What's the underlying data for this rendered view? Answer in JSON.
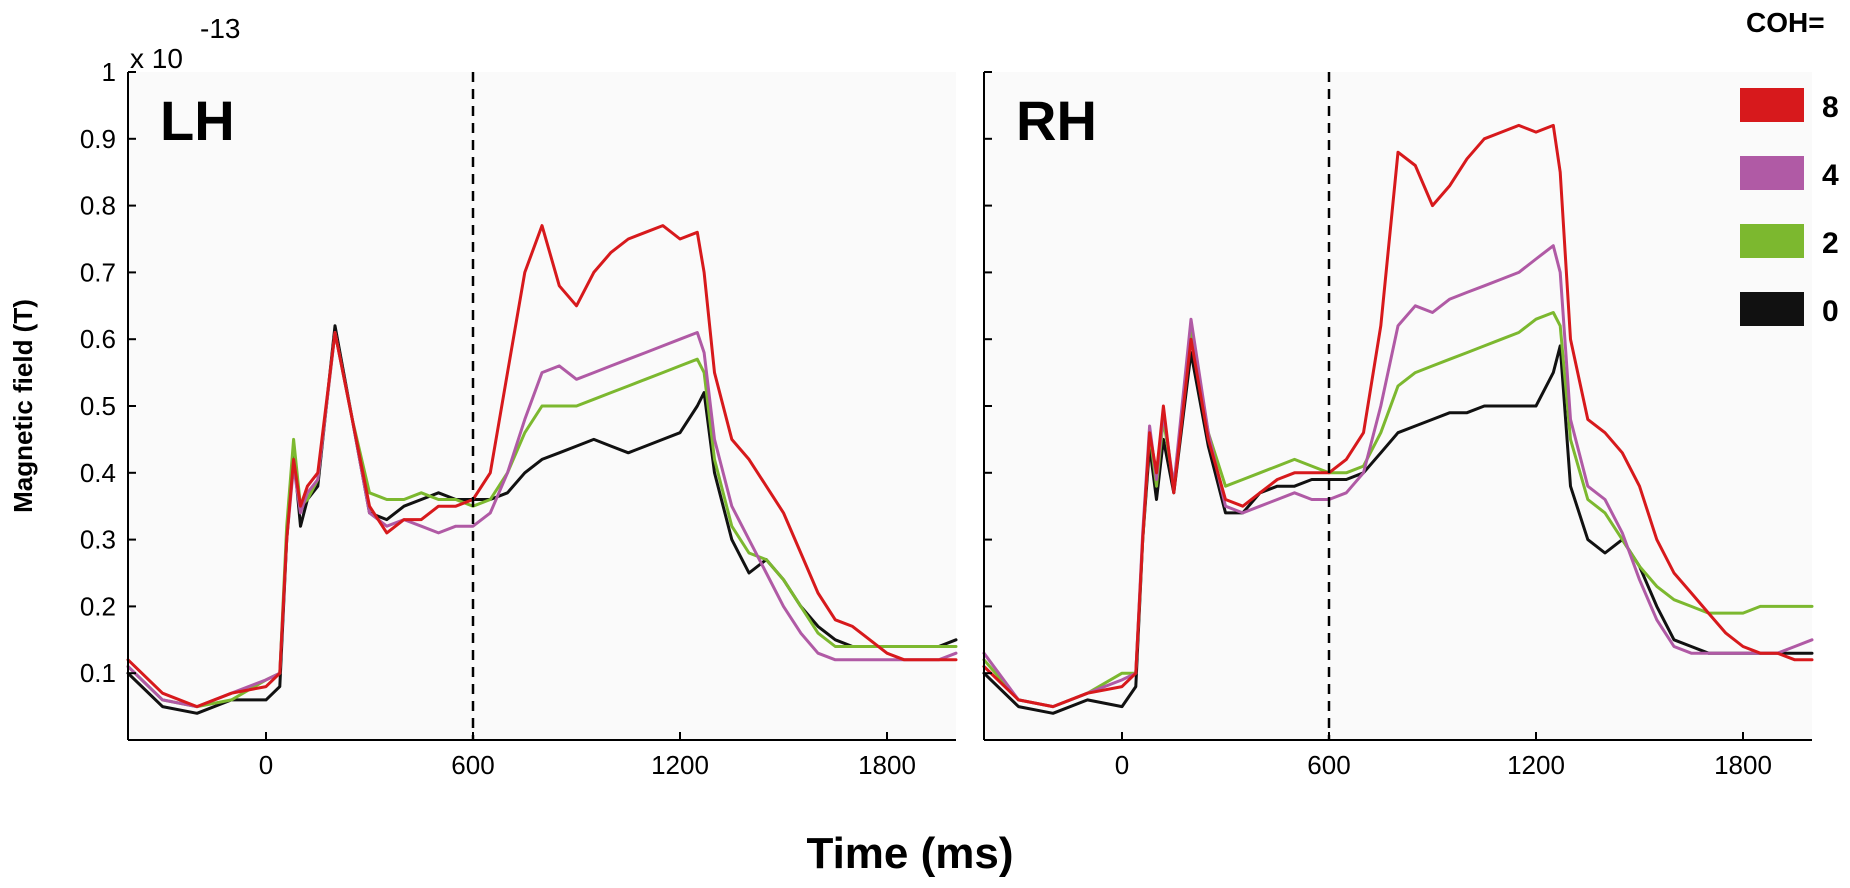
{
  "chart_data": {
    "type": "line",
    "xlabel": "Time (ms)",
    "ylabel": "Magnetic field (T)",
    "y_multiplier": {
      "base": "x 10",
      "exponent": "-13"
    },
    "xlim": [
      -400,
      2000
    ],
    "ylim": [
      0,
      1
    ],
    "xticks": [
      0,
      600,
      1200,
      1800
    ],
    "yticks": [
      0.1,
      0.2,
      0.3,
      0.4,
      0.5,
      0.6,
      0.7,
      0.8,
      0.9,
      1
    ],
    "ytick_labels": [
      "0.1",
      "0.2",
      "0.3",
      "0.4",
      "0.5",
      "0.6",
      "0.7",
      "0.8",
      "0.9",
      "1"
    ],
    "xtick_labels": [
      "0",
      "600",
      "1200",
      "1800"
    ],
    "vline_x": 600,
    "grid": false,
    "legend": {
      "title": "COH=",
      "placement": "top-right",
      "entries": [
        {
          "label": "8",
          "color": "#d7191c"
        },
        {
          "label": "4",
          "color": "#b05aa5"
        },
        {
          "label": "2",
          "color": "#7cb82f"
        },
        {
          "label": "0",
          "color": "#111111"
        }
      ]
    },
    "panels": [
      {
        "label": "LH",
        "series": [
          {
            "name": "8",
            "color": "#d7191c",
            "x": [
              -400,
              -300,
              -200,
              -100,
              0,
              40,
              60,
              80,
              100,
              120,
              150,
              200,
              250,
              300,
              350,
              400,
              450,
              500,
              550,
              600,
              650,
              700,
              750,
              800,
              850,
              900,
              950,
              1000,
              1050,
              1100,
              1150,
              1200,
              1250,
              1270,
              1300,
              1350,
              1400,
              1450,
              1500,
              1550,
              1600,
              1650,
              1700,
              1750,
              1800,
              1850,
              1900,
              1950,
              2000
            ],
            "y": [
              0.12,
              0.07,
              0.05,
              0.07,
              0.08,
              0.1,
              0.3,
              0.42,
              0.35,
              0.38,
              0.4,
              0.61,
              0.48,
              0.35,
              0.31,
              0.33,
              0.33,
              0.35,
              0.35,
              0.36,
              0.4,
              0.55,
              0.7,
              0.77,
              0.68,
              0.65,
              0.7,
              0.73,
              0.75,
              0.76,
              0.77,
              0.75,
              0.76,
              0.7,
              0.55,
              0.45,
              0.42,
              0.38,
              0.34,
              0.28,
              0.22,
              0.18,
              0.17,
              0.15,
              0.13,
              0.12,
              0.12,
              0.12,
              0.12
            ]
          },
          {
            "name": "4",
            "color": "#b05aa5",
            "x": [
              -400,
              -300,
              -200,
              -100,
              0,
              40,
              60,
              80,
              100,
              120,
              150,
              200,
              250,
              300,
              350,
              400,
              450,
              500,
              550,
              600,
              650,
              700,
              750,
              800,
              850,
              900,
              950,
              1000,
              1050,
              1100,
              1150,
              1200,
              1250,
              1270,
              1300,
              1350,
              1400,
              1450,
              1500,
              1550,
              1600,
              1650,
              1700,
              1750,
              1800,
              1850,
              1900,
              1950,
              2000
            ],
            "y": [
              0.11,
              0.06,
              0.05,
              0.07,
              0.09,
              0.1,
              0.3,
              0.41,
              0.34,
              0.37,
              0.39,
              0.61,
              0.48,
              0.34,
              0.32,
              0.33,
              0.32,
              0.31,
              0.32,
              0.32,
              0.34,
              0.4,
              0.48,
              0.55,
              0.56,
              0.54,
              0.55,
              0.56,
              0.57,
              0.58,
              0.59,
              0.6,
              0.61,
              0.58,
              0.45,
              0.35,
              0.3,
              0.25,
              0.2,
              0.16,
              0.13,
              0.12,
              0.12,
              0.12,
              0.12,
              0.12,
              0.12,
              0.12,
              0.13
            ]
          },
          {
            "name": "2",
            "color": "#7cb82f",
            "x": [
              -400,
              -300,
              -200,
              -100,
              0,
              40,
              60,
              80,
              100,
              120,
              150,
              200,
              250,
              300,
              350,
              400,
              450,
              500,
              550,
              600,
              650,
              700,
              750,
              800,
              850,
              900,
              950,
              1000,
              1050,
              1100,
              1150,
              1200,
              1250,
              1270,
              1300,
              1350,
              1400,
              1450,
              1500,
              1550,
              1600,
              1650,
              1700,
              1750,
              1800,
              1850,
              1900,
              1950,
              2000
            ],
            "y": [
              0.11,
              0.06,
              0.05,
              0.06,
              0.09,
              0.1,
              0.32,
              0.45,
              0.35,
              0.36,
              0.39,
              0.61,
              0.48,
              0.37,
              0.36,
              0.36,
              0.37,
              0.36,
              0.36,
              0.35,
              0.36,
              0.4,
              0.46,
              0.5,
              0.5,
              0.5,
              0.51,
              0.52,
              0.53,
              0.54,
              0.55,
              0.56,
              0.57,
              0.55,
              0.42,
              0.32,
              0.28,
              0.27,
              0.24,
              0.2,
              0.16,
              0.14,
              0.14,
              0.14,
              0.14,
              0.14,
              0.14,
              0.14,
              0.14
            ]
          },
          {
            "name": "0",
            "color": "#111111",
            "x": [
              -400,
              -300,
              -200,
              -100,
              0,
              40,
              60,
              80,
              100,
              120,
              150,
              200,
              250,
              300,
              350,
              400,
              450,
              500,
              550,
              600,
              650,
              700,
              750,
              800,
              850,
              900,
              950,
              1000,
              1050,
              1100,
              1150,
              1200,
              1250,
              1270,
              1300,
              1350,
              1400,
              1450,
              1500,
              1550,
              1600,
              1650,
              1700,
              1750,
              1800,
              1850,
              1900,
              1950,
              2000
            ],
            "y": [
              0.1,
              0.05,
              0.04,
              0.06,
              0.06,
              0.08,
              0.3,
              0.43,
              0.32,
              0.36,
              0.38,
              0.62,
              0.48,
              0.34,
              0.33,
              0.35,
              0.36,
              0.37,
              0.36,
              0.36,
              0.36,
              0.37,
              0.4,
              0.42,
              0.43,
              0.44,
              0.45,
              0.44,
              0.43,
              0.44,
              0.45,
              0.46,
              0.5,
              0.52,
              0.4,
              0.3,
              0.25,
              0.27,
              0.24,
              0.2,
              0.17,
              0.15,
              0.14,
              0.14,
              0.14,
              0.14,
              0.14,
              0.14,
              0.15
            ]
          }
        ]
      },
      {
        "label": "RH",
        "series": [
          {
            "name": "8",
            "color": "#d7191c",
            "x": [
              -400,
              -300,
              -200,
              -100,
              0,
              40,
              60,
              80,
              100,
              120,
              150,
              200,
              250,
              300,
              350,
              400,
              450,
              500,
              550,
              600,
              650,
              700,
              750,
              800,
              850,
              900,
              950,
              1000,
              1050,
              1100,
              1150,
              1200,
              1250,
              1270,
              1300,
              1350,
              1400,
              1450,
              1500,
              1550,
              1600,
              1650,
              1700,
              1750,
              1800,
              1850,
              1900,
              1950,
              2000
            ],
            "y": [
              0.11,
              0.06,
              0.05,
              0.07,
              0.08,
              0.1,
              0.3,
              0.46,
              0.4,
              0.5,
              0.37,
              0.6,
              0.45,
              0.36,
              0.35,
              0.37,
              0.39,
              0.4,
              0.4,
              0.4,
              0.42,
              0.46,
              0.62,
              0.88,
              0.86,
              0.8,
              0.83,
              0.87,
              0.9,
              0.91,
              0.92,
              0.91,
              0.92,
              0.85,
              0.6,
              0.48,
              0.46,
              0.43,
              0.38,
              0.3,
              0.25,
              0.22,
              0.19,
              0.16,
              0.14,
              0.13,
              0.13,
              0.12,
              0.12
            ]
          },
          {
            "name": "4",
            "color": "#b05aa5",
            "x": [
              -400,
              -300,
              -200,
              -100,
              0,
              40,
              60,
              80,
              100,
              120,
              150,
              200,
              250,
              300,
              350,
              400,
              450,
              500,
              550,
              600,
              650,
              700,
              750,
              800,
              850,
              900,
              950,
              1000,
              1050,
              1100,
              1150,
              1200,
              1250,
              1270,
              1300,
              1350,
              1400,
              1450,
              1500,
              1550,
              1600,
              1650,
              1700,
              1750,
              1800,
              1850,
              1900,
              1950,
              2000
            ],
            "y": [
              0.13,
              0.06,
              0.05,
              0.07,
              0.09,
              0.1,
              0.31,
              0.47,
              0.39,
              0.49,
              0.38,
              0.63,
              0.46,
              0.35,
              0.34,
              0.35,
              0.36,
              0.37,
              0.36,
              0.36,
              0.37,
              0.4,
              0.5,
              0.62,
              0.65,
              0.64,
              0.66,
              0.67,
              0.68,
              0.69,
              0.7,
              0.72,
              0.74,
              0.7,
              0.48,
              0.38,
              0.36,
              0.31,
              0.24,
              0.18,
              0.14,
              0.13,
              0.13,
              0.13,
              0.13,
              0.13,
              0.13,
              0.14,
              0.15
            ]
          },
          {
            "name": "2",
            "color": "#7cb82f",
            "x": [
              -400,
              -300,
              -200,
              -100,
              0,
              40,
              60,
              80,
              100,
              120,
              150,
              200,
              250,
              300,
              350,
              400,
              450,
              500,
              550,
              600,
              650,
              700,
              750,
              800,
              850,
              900,
              950,
              1000,
              1050,
              1100,
              1150,
              1200,
              1250,
              1270,
              1300,
              1350,
              1400,
              1450,
              1500,
              1550,
              1600,
              1650,
              1700,
              1750,
              1800,
              1850,
              1900,
              1950,
              2000
            ],
            "y": [
              0.12,
              0.06,
              0.05,
              0.07,
              0.1,
              0.1,
              0.3,
              0.46,
              0.38,
              0.48,
              0.38,
              0.61,
              0.46,
              0.38,
              0.39,
              0.4,
              0.41,
              0.42,
              0.41,
              0.4,
              0.4,
              0.41,
              0.46,
              0.53,
              0.55,
              0.56,
              0.57,
              0.58,
              0.59,
              0.6,
              0.61,
              0.63,
              0.64,
              0.62,
              0.45,
              0.36,
              0.34,
              0.3,
              0.26,
              0.23,
              0.21,
              0.2,
              0.19,
              0.19,
              0.19,
              0.2,
              0.2,
              0.2,
              0.2
            ]
          },
          {
            "name": "0",
            "color": "#111111",
            "x": [
              -400,
              -300,
              -200,
              -100,
              0,
              40,
              60,
              80,
              100,
              120,
              150,
              200,
              250,
              300,
              350,
              400,
              450,
              500,
              550,
              600,
              650,
              700,
              750,
              800,
              850,
              900,
              950,
              1000,
              1050,
              1100,
              1150,
              1200,
              1250,
              1270,
              1300,
              1350,
              1400,
              1450,
              1500,
              1550,
              1600,
              1650,
              1700,
              1750,
              1800,
              1850,
              1900,
              1950,
              2000
            ],
            "y": [
              0.1,
              0.05,
              0.04,
              0.06,
              0.05,
              0.08,
              0.3,
              0.44,
              0.36,
              0.45,
              0.37,
              0.58,
              0.44,
              0.34,
              0.34,
              0.37,
              0.38,
              0.38,
              0.39,
              0.39,
              0.39,
              0.4,
              0.43,
              0.46,
              0.47,
              0.48,
              0.49,
              0.49,
              0.5,
              0.5,
              0.5,
              0.5,
              0.55,
              0.59,
              0.38,
              0.3,
              0.28,
              0.3,
              0.26,
              0.2,
              0.15,
              0.14,
              0.13,
              0.13,
              0.13,
              0.13,
              0.13,
              0.13,
              0.13
            ]
          }
        ]
      }
    ]
  }
}
